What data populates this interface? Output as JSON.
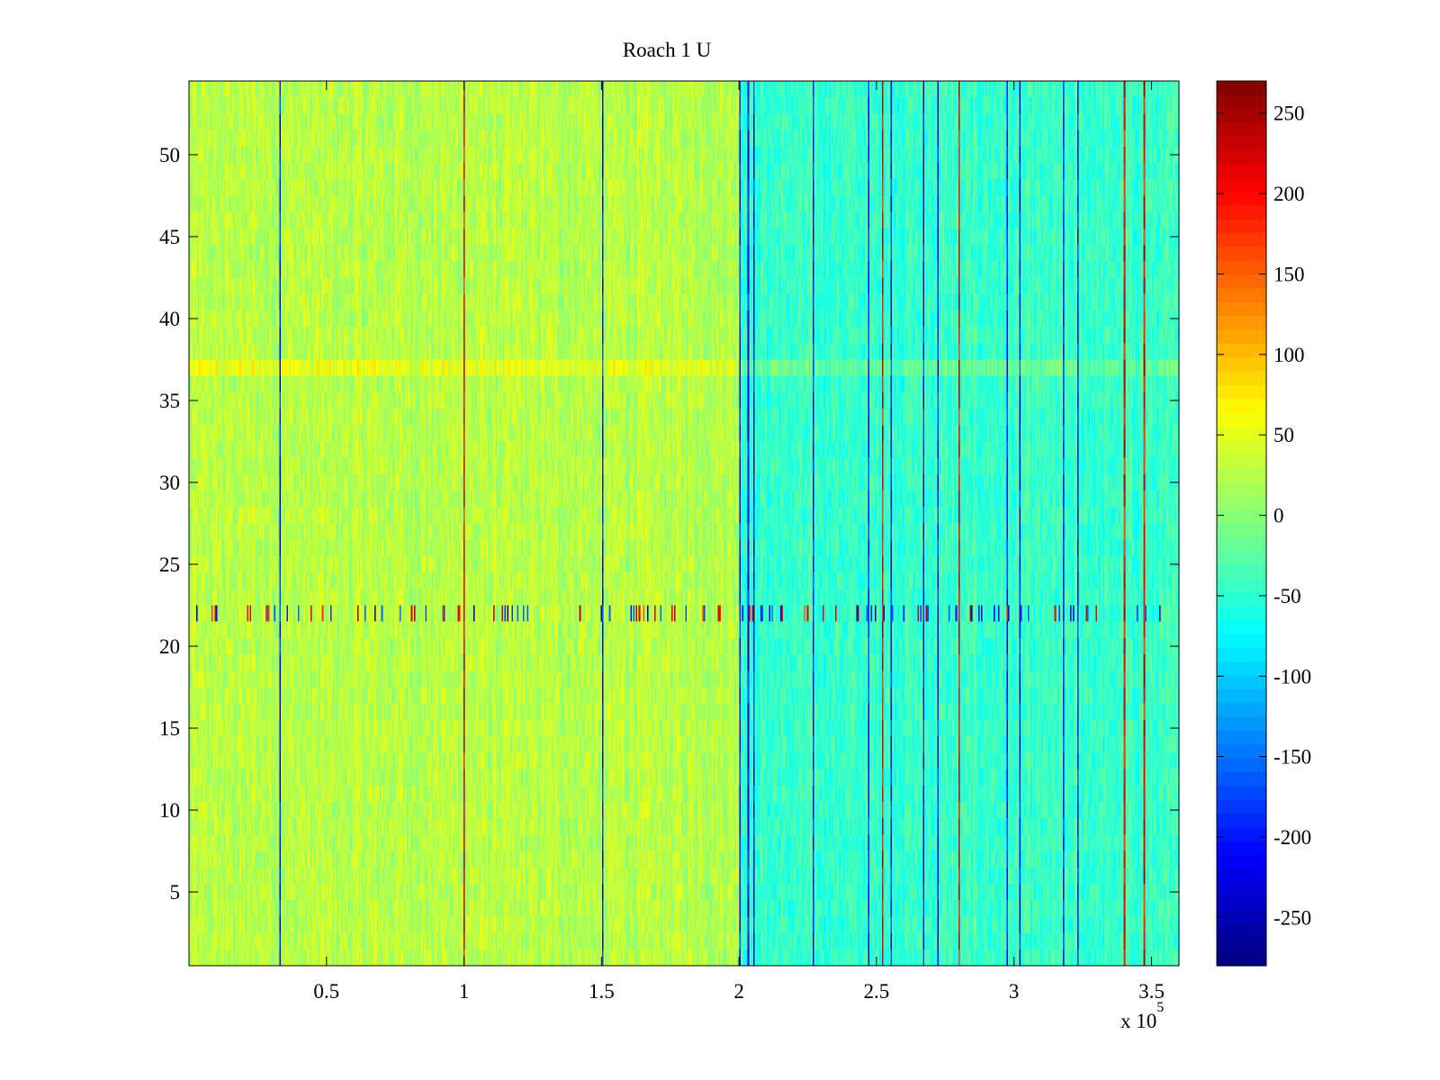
{
  "chart_data": {
    "type": "heatmap",
    "title": "Roach 1 U",
    "xlabel": "",
    "ylabel": "",
    "x_multiplier_label": "x 10",
    "x_multiplier_exponent": "5",
    "x_range": [
      0,
      360000
    ],
    "y_range": [
      0.5,
      54.5
    ],
    "x_ticks": [
      {
        "value": 0.5,
        "label": "0.5"
      },
      {
        "value": 1,
        "label": "1"
      },
      {
        "value": 1.5,
        "label": "1.5"
      },
      {
        "value": 2,
        "label": "2"
      },
      {
        "value": 2.5,
        "label": "2.5"
      },
      {
        "value": 3,
        "label": "3"
      },
      {
        "value": 3.5,
        "label": "3.5"
      }
    ],
    "y_ticks": [
      {
        "value": 5,
        "label": "5"
      },
      {
        "value": 10,
        "label": "10"
      },
      {
        "value": 15,
        "label": "15"
      },
      {
        "value": 20,
        "label": "20"
      },
      {
        "value": 25,
        "label": "25"
      },
      {
        "value": 30,
        "label": "30"
      },
      {
        "value": 35,
        "label": "35"
      },
      {
        "value": 40,
        "label": "40"
      },
      {
        "value": 45,
        "label": "45"
      },
      {
        "value": 50,
        "label": "50"
      }
    ],
    "colorbar": {
      "colormap": "jet",
      "range": [
        -280,
        270
      ],
      "ticks": [
        {
          "value": 250,
          "label": "250"
        },
        {
          "value": 200,
          "label": "200"
        },
        {
          "value": 150,
          "label": "150"
        },
        {
          "value": 100,
          "label": "100"
        },
        {
          "value": 50,
          "label": "50"
        },
        {
          "value": 0,
          "label": "0"
        },
        {
          "value": -50,
          "label": "-50"
        },
        {
          "value": -100,
          "label": "-100"
        },
        {
          "value": -150,
          "label": "-150"
        },
        {
          "value": -200,
          "label": "-200"
        },
        {
          "value": -250,
          "label": "-250"
        }
      ]
    },
    "rows": 54,
    "regions": [
      {
        "x_from": 0,
        "x_to": 200000,
        "mean_value": 25
      },
      {
        "x_from": 200000,
        "x_to": 360000,
        "mean_value": -45
      }
    ],
    "anomalous_rows": [
      {
        "row": 22,
        "description": "frequent strong negative/positive spikes"
      },
      {
        "row": 37,
        "description": "slightly elevated values"
      }
    ],
    "spike_columns_x": [
      33000,
      100000,
      150000,
      200000,
      203000,
      205000,
      227000,
      247000,
      252000,
      255000,
      267000,
      272000,
      280000,
      297000,
      302000,
      318000,
      323000,
      340000,
      347000
    ],
    "grid": false,
    "legend": "none"
  }
}
